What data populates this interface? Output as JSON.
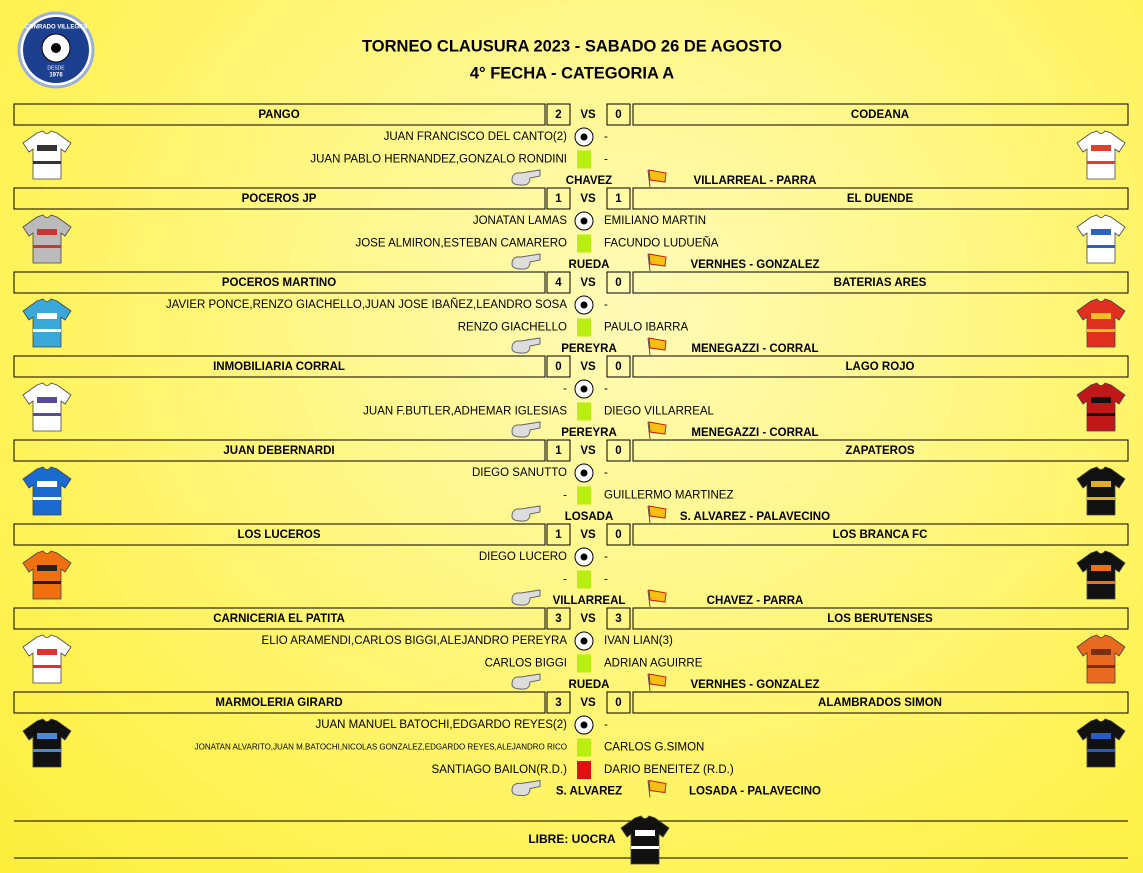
{
  "logo": {
    "name": "CONRADO VILLEGAS",
    "since": "DESDE",
    "year": "1976"
  },
  "header": {
    "title": "TORNEO CLAUSURA 2023 - SABADO 26 DE AGOSTO",
    "subtitle": "4° FECHA - CATEGORIA A"
  },
  "matches": [
    {
      "home": "PANGO",
      "home_score": "2",
      "vs": "VS",
      "away_score": "0",
      "away": "CODEANA",
      "goals": {
        "home": "JUAN FRANCISCO DEL CANTO(2)",
        "away": "-"
      },
      "yellow": {
        "home": "JUAN PABLO HERNANDEZ,GONZALO RONDINI",
        "away": "-"
      },
      "referee": "CHAVEZ",
      "assistants": "VILLARREAL - PARRA"
    },
    {
      "home": "POCEROS JP",
      "home_score": "1",
      "vs": "VS",
      "away_score": "1",
      "away": "EL DUENDE",
      "goals": {
        "home": "JONATAN LAMAS",
        "away": "EMILIANO MARTIN"
      },
      "yellow": {
        "home": "JOSE ALMIRON,ESTEBAN CAMARERO",
        "away": "FACUNDO LUDUEÑA"
      },
      "referee": "RUEDA",
      "assistants": "VERNHES - GONZALEZ"
    },
    {
      "home": "POCEROS MARTINO",
      "home_score": "4",
      "vs": "VS",
      "away_score": "0",
      "away": "BATERIAS ARES",
      "goals": {
        "home": "JAVIER PONCE,RENZO GIACHELLO,JUAN JOSE IBAÑEZ,LEANDRO SOSA",
        "away": "-"
      },
      "yellow": {
        "home": "RENZO GIACHELLO",
        "away": "PAULO IBARRA"
      },
      "referee": "PEREYRA",
      "assistants": "MENEGAZZI - CORRAL"
    },
    {
      "home": "INMOBILIARIA CORRAL",
      "home_score": "0",
      "vs": "VS",
      "away_score": "0",
      "away": "LAGO ROJO",
      "goals": {
        "home": "-",
        "away": "-"
      },
      "yellow": {
        "home": "JUAN F.BUTLER,ADHEMAR IGLESIAS",
        "away": "DIEGO VILLARREAL"
      },
      "referee": "PEREYRA",
      "assistants": "MENEGAZZI - CORRAL"
    },
    {
      "home": "JUAN DEBERNARDI",
      "home_score": "1",
      "vs": "VS",
      "away_score": "0",
      "away": "ZAPATEROS",
      "goals": {
        "home": "DIEGO SANUTTO",
        "away": "-"
      },
      "yellow": {
        "home": "-",
        "away": "GUILLERMO MARTINEZ"
      },
      "referee": "LOSADA",
      "assistants": "S. ALVAREZ - PALAVECINO"
    },
    {
      "home": "LOS LUCEROS",
      "home_score": "1",
      "vs": "VS",
      "away_score": "0",
      "away": "LOS BRANCA FC",
      "goals": {
        "home": "DIEGO LUCERO",
        "away": "-"
      },
      "yellow": {
        "home": "-",
        "away": "-"
      },
      "referee": "VILLARREAL",
      "assistants": "CHAVEZ - PARRA"
    },
    {
      "home": "CARNICERIA EL PATITA",
      "home_score": "3",
      "vs": "VS",
      "away_score": "3",
      "away": "LOS BERUTENSES",
      "goals": {
        "home": "ELIO ARAMENDI,CARLOS BIGGI,ALEJANDRO PEREYRA",
        "away": "IVAN LIAN(3)"
      },
      "yellow": {
        "home": "CARLOS BIGGI",
        "away": "ADRIAN AGUIRRE"
      },
      "referee": "RUEDA",
      "assistants": "VERNHES - GONZALEZ"
    },
    {
      "home": "MARMOLERIA GIRARD",
      "home_score": "3",
      "vs": "VS",
      "away_score": "0",
      "away": "ALAMBRADOS SIMON",
      "goals": {
        "home": "JUAN MANUEL BATOCHI,EDGARDO REYES(2)",
        "away": "-"
      },
      "yellow": {
        "home": "JONATAN ALVARITO,JUAN M.BATOCHI,NICOLAS GONZALEZ,EDGARDO REYES,ALEJANDRO RICO",
        "away": "CARLOS G.SIMON"
      },
      "red": {
        "home": "SANTIAGO BAILON(R.D.)",
        "away": "DARIO BENEITEZ (R.D.)"
      },
      "referee": "S. ALVAREZ",
      "assistants": "LOSADA - PALAVECINO"
    }
  ],
  "footer": {
    "free": "LIBRE: UOCRA"
  }
}
